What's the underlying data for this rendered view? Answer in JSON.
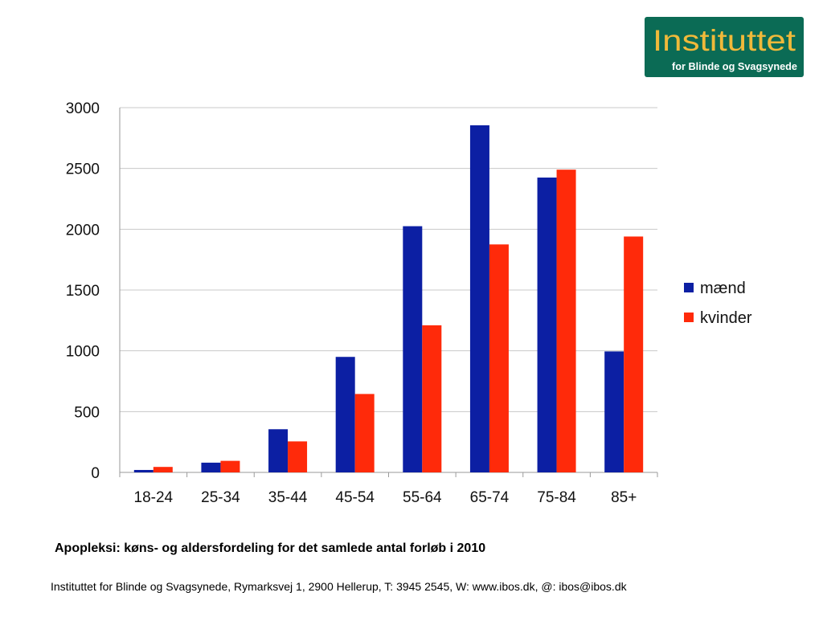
{
  "logo": {
    "title": "Instituttet",
    "subtitle": "for Blinde og Svagsynede",
    "bg_color": "#0b6b55",
    "title_color": "#f0b93a"
  },
  "chart_data": {
    "type": "bar",
    "categories": [
      "18-24",
      "25-34",
      "35-44",
      "45-54",
      "55-64",
      "65-74",
      "75-84",
      "85+"
    ],
    "series": [
      {
        "name": "mænd",
        "color": "#0c1fa3",
        "values": [
          20,
          80,
          355,
          950,
          2025,
          2855,
          2425,
          995
        ]
      },
      {
        "name": "kvinder",
        "color": "#ff2a0a",
        "values": [
          45,
          95,
          255,
          645,
          1210,
          1875,
          2490,
          1940
        ]
      }
    ],
    "yticks": [
      0,
      500,
      1000,
      1500,
      2000,
      2500,
      3000
    ],
    "ylim": [
      0,
      3000
    ],
    "grid": true,
    "legend_position": "right"
  },
  "caption": "Apopleksi: køns- og aldersfordeling for det samlede antal forløb i 2010",
  "footer": "Instituttet for Blinde og Svagsynede,  Rymarksvej 1, 2900 Hellerup,  T: 3945 2545, W: www.ibos.dk, @: ibos@ibos.dk"
}
